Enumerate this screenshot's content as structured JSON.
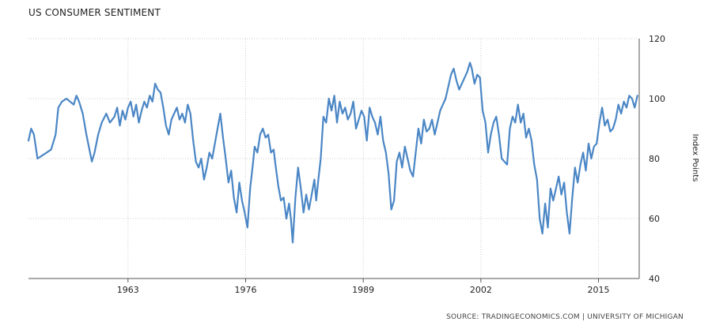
{
  "chart_data": {
    "type": "line",
    "title": "US CONSUMER SENTIMENT",
    "ylabel": "Index Points",
    "source": "SOURCE: TRADINGECONOMICS.COM | UNIVERSITY OF MICHIGAN",
    "xlim": [
      1952,
      2019.5
    ],
    "ylim": [
      40,
      120
    ],
    "x_ticks": [
      1963,
      1976,
      1989,
      2002,
      2015
    ],
    "y_ticks": [
      40,
      60,
      80,
      100,
      120
    ],
    "y_axis_side": "right",
    "grid": true,
    "colors": {
      "line": "#4a86c5",
      "grid": "#cccccc",
      "axis": "#555555"
    },
    "series": [
      {
        "values": [
          [
            1952.0,
            86
          ],
          [
            1952.3,
            90
          ],
          [
            1952.6,
            88
          ],
          [
            1953.0,
            80
          ],
          [
            1953.5,
            81
          ],
          [
            1954.0,
            82
          ],
          [
            1954.5,
            83
          ],
          [
            1955.0,
            88
          ],
          [
            1955.3,
            97
          ],
          [
            1955.7,
            99
          ],
          [
            1956.2,
            100
          ],
          [
            1956.6,
            99
          ],
          [
            1957.0,
            98
          ],
          [
            1957.3,
            101
          ],
          [
            1957.6,
            99
          ],
          [
            1958.0,
            95
          ],
          [
            1958.4,
            88
          ],
          [
            1958.8,
            82
          ],
          [
            1959.0,
            79
          ],
          [
            1959.3,
            82
          ],
          [
            1959.7,
            88
          ],
          [
            1960.1,
            92
          ],
          [
            1960.6,
            95
          ],
          [
            1961.0,
            92
          ],
          [
            1961.5,
            94
          ],
          [
            1961.8,
            97
          ],
          [
            1962.1,
            91
          ],
          [
            1962.4,
            96
          ],
          [
            1962.7,
            93
          ],
          [
            1963.0,
            97
          ],
          [
            1963.3,
            99
          ],
          [
            1963.6,
            94
          ],
          [
            1963.9,
            98
          ],
          [
            1964.2,
            92
          ],
          [
            1964.5,
            96
          ],
          [
            1964.8,
            99
          ],
          [
            1965.1,
            97
          ],
          [
            1965.4,
            101
          ],
          [
            1965.7,
            99
          ],
          [
            1966.0,
            105
          ],
          [
            1966.3,
            103
          ],
          [
            1966.6,
            102
          ],
          [
            1966.9,
            97
          ],
          [
            1967.2,
            91
          ],
          [
            1967.5,
            88
          ],
          [
            1967.8,
            93
          ],
          [
            1968.1,
            95
          ],
          [
            1968.4,
            97
          ],
          [
            1968.7,
            93
          ],
          [
            1969.0,
            95
          ],
          [
            1969.3,
            92
          ],
          [
            1969.6,
            98
          ],
          [
            1969.9,
            95
          ],
          [
            1970.2,
            86
          ],
          [
            1970.5,
            79
          ],
          [
            1970.8,
            77
          ],
          [
            1971.1,
            80
          ],
          [
            1971.4,
            73
          ],
          [
            1971.7,
            77
          ],
          [
            1972.0,
            82
          ],
          [
            1972.3,
            80
          ],
          [
            1972.6,
            85
          ],
          [
            1972.9,
            90
          ],
          [
            1973.2,
            95
          ],
          [
            1973.5,
            87
          ],
          [
            1973.8,
            80
          ],
          [
            1974.1,
            72
          ],
          [
            1974.4,
            76
          ],
          [
            1974.7,
            67
          ],
          [
            1975.0,
            62
          ],
          [
            1975.3,
            72
          ],
          [
            1975.6,
            66
          ],
          [
            1975.9,
            62
          ],
          [
            1976.2,
            57
          ],
          [
            1976.5,
            70
          ],
          [
            1976.8,
            78
          ],
          [
            1977.0,
            84
          ],
          [
            1977.3,
            82
          ],
          [
            1977.6,
            88
          ],
          [
            1977.9,
            90
          ],
          [
            1978.2,
            87
          ],
          [
            1978.5,
            88
          ],
          [
            1978.8,
            82
          ],
          [
            1979.1,
            83
          ],
          [
            1979.3,
            78
          ],
          [
            1979.6,
            71
          ],
          [
            1979.9,
            66
          ],
          [
            1980.2,
            67
          ],
          [
            1980.5,
            60
          ],
          [
            1980.8,
            65
          ],
          [
            1981.0,
            60
          ],
          [
            1981.2,
            52
          ],
          [
            1981.5,
            67
          ],
          [
            1981.8,
            77
          ],
          [
            1982.1,
            70
          ],
          [
            1982.4,
            62
          ],
          [
            1982.7,
            68
          ],
          [
            1983.0,
            63
          ],
          [
            1983.3,
            68
          ],
          [
            1983.6,
            73
          ],
          [
            1983.8,
            66
          ],
          [
            1984.0,
            72
          ],
          [
            1984.3,
            80
          ],
          [
            1984.6,
            94
          ],
          [
            1984.9,
            92
          ],
          [
            1985.2,
            100
          ],
          [
            1985.5,
            96
          ],
          [
            1985.8,
            101
          ],
          [
            1986.1,
            92
          ],
          [
            1986.4,
            99
          ],
          [
            1986.7,
            95
          ],
          [
            1987.0,
            97
          ],
          [
            1987.3,
            93
          ],
          [
            1987.6,
            95
          ],
          [
            1987.9,
            99
          ],
          [
            1988.2,
            90
          ],
          [
            1988.5,
            93
          ],
          [
            1988.8,
            96
          ],
          [
            1989.1,
            94
          ],
          [
            1989.4,
            86
          ],
          [
            1989.7,
            97
          ],
          [
            1990.0,
            94
          ],
          [
            1990.3,
            92
          ],
          [
            1990.6,
            88
          ],
          [
            1990.9,
            94
          ],
          [
            1991.2,
            86
          ],
          [
            1991.5,
            82
          ],
          [
            1991.8,
            75
          ],
          [
            1992.1,
            63
          ],
          [
            1992.4,
            66
          ],
          [
            1992.7,
            79
          ],
          [
            1993.0,
            82
          ],
          [
            1993.3,
            77
          ],
          [
            1993.6,
            84
          ],
          [
            1993.9,
            80
          ],
          [
            1994.2,
            76
          ],
          [
            1994.5,
            74
          ],
          [
            1994.8,
            82
          ],
          [
            1995.1,
            90
          ],
          [
            1995.4,
            85
          ],
          [
            1995.7,
            93
          ],
          [
            1996.0,
            89
          ],
          [
            1996.3,
            90
          ],
          [
            1996.6,
            93
          ],
          [
            1996.9,
            88
          ],
          [
            1997.2,
            92
          ],
          [
            1997.5,
            96
          ],
          [
            1997.8,
            98
          ],
          [
            1998.1,
            100
          ],
          [
            1998.4,
            104
          ],
          [
            1998.7,
            108
          ],
          [
            1999.0,
            110
          ],
          [
            1999.3,
            106
          ],
          [
            1999.6,
            103
          ],
          [
            1999.9,
            105
          ],
          [
            2000.2,
            107
          ],
          [
            2000.5,
            109
          ],
          [
            2000.8,
            112
          ],
          [
            2001.0,
            110
          ],
          [
            2001.3,
            105
          ],
          [
            2001.6,
            108
          ],
          [
            2001.9,
            107
          ],
          [
            2002.2,
            96
          ],
          [
            2002.5,
            92
          ],
          [
            2002.8,
            82
          ],
          [
            2003.1,
            88
          ],
          [
            2003.4,
            92
          ],
          [
            2003.7,
            94
          ],
          [
            2004.0,
            88
          ],
          [
            2004.3,
            80
          ],
          [
            2004.6,
            79
          ],
          [
            2004.9,
            78
          ],
          [
            2005.2,
            90
          ],
          [
            2005.5,
            94
          ],
          [
            2005.8,
            92
          ],
          [
            2006.1,
            98
          ],
          [
            2006.4,
            92
          ],
          [
            2006.7,
            95
          ],
          [
            2007.0,
            87
          ],
          [
            2007.3,
            90
          ],
          [
            2007.6,
            86
          ],
          [
            2007.9,
            78
          ],
          [
            2008.2,
            73
          ],
          [
            2008.5,
            60
          ],
          [
            2008.8,
            55
          ],
          [
            2009.1,
            65
          ],
          [
            2009.4,
            57
          ],
          [
            2009.7,
            70
          ],
          [
            2010.0,
            66
          ],
          [
            2010.3,
            70
          ],
          [
            2010.6,
            74
          ],
          [
            2010.9,
            68
          ],
          [
            2011.2,
            72
          ],
          [
            2011.5,
            62
          ],
          [
            2011.8,
            55
          ],
          [
            2012.1,
            67
          ],
          [
            2012.4,
            77
          ],
          [
            2012.7,
            72
          ],
          [
            2013.0,
            78
          ],
          [
            2013.3,
            82
          ],
          [
            2013.6,
            76
          ],
          [
            2013.9,
            85
          ],
          [
            2014.2,
            80
          ],
          [
            2014.5,
            84
          ],
          [
            2014.8,
            85
          ],
          [
            2015.1,
            92
          ],
          [
            2015.4,
            97
          ],
          [
            2015.7,
            91
          ],
          [
            2016.0,
            93
          ],
          [
            2016.3,
            89
          ],
          [
            2016.6,
            90
          ],
          [
            2016.9,
            93
          ],
          [
            2017.2,
            98
          ],
          [
            2017.5,
            95
          ],
          [
            2017.8,
            99
          ],
          [
            2018.1,
            97
          ],
          [
            2018.4,
            101
          ],
          [
            2018.7,
            100
          ],
          [
            2019.0,
            97
          ],
          [
            2019.3,
            101
          ]
        ]
      }
    ]
  }
}
